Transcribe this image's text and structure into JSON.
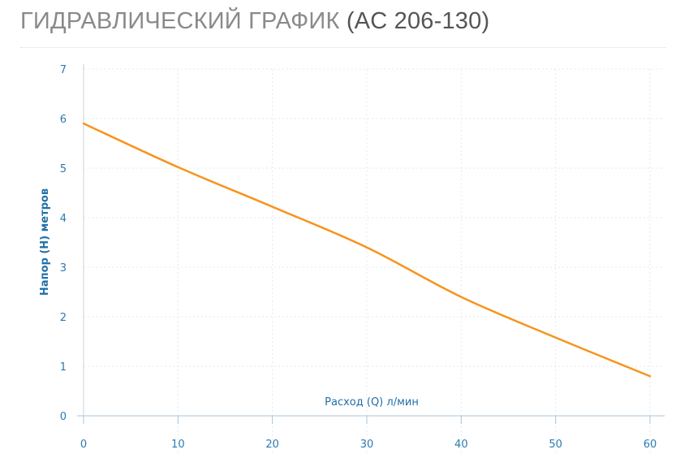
{
  "header": {
    "title_main": "ГИДРАВЛИЧЕСКИЙ ГРАФИК",
    "title_model": "(AC 206-130)"
  },
  "chart_data": {
    "type": "line",
    "xlabel": "Расход (Q) л/мин",
    "ylabel": "Напор (H) метров",
    "xlim": [
      0,
      60
    ],
    "ylim": [
      0,
      7
    ],
    "x_ticks": [
      "0",
      "10",
      "20",
      "30",
      "40",
      "50",
      "60"
    ],
    "y_ticks": [
      "0",
      "1",
      "2",
      "3",
      "4",
      "5",
      "6",
      "7"
    ],
    "grid": true,
    "line_color": "#f7941d",
    "axis_text_color": "#2a7bb0",
    "series": [
      {
        "x": [
          0,
          10,
          20,
          30,
          40,
          50,
          60
        ],
        "y": [
          5.9,
          5.02,
          4.22,
          3.4,
          2.4,
          1.58,
          0.8
        ]
      }
    ]
  }
}
